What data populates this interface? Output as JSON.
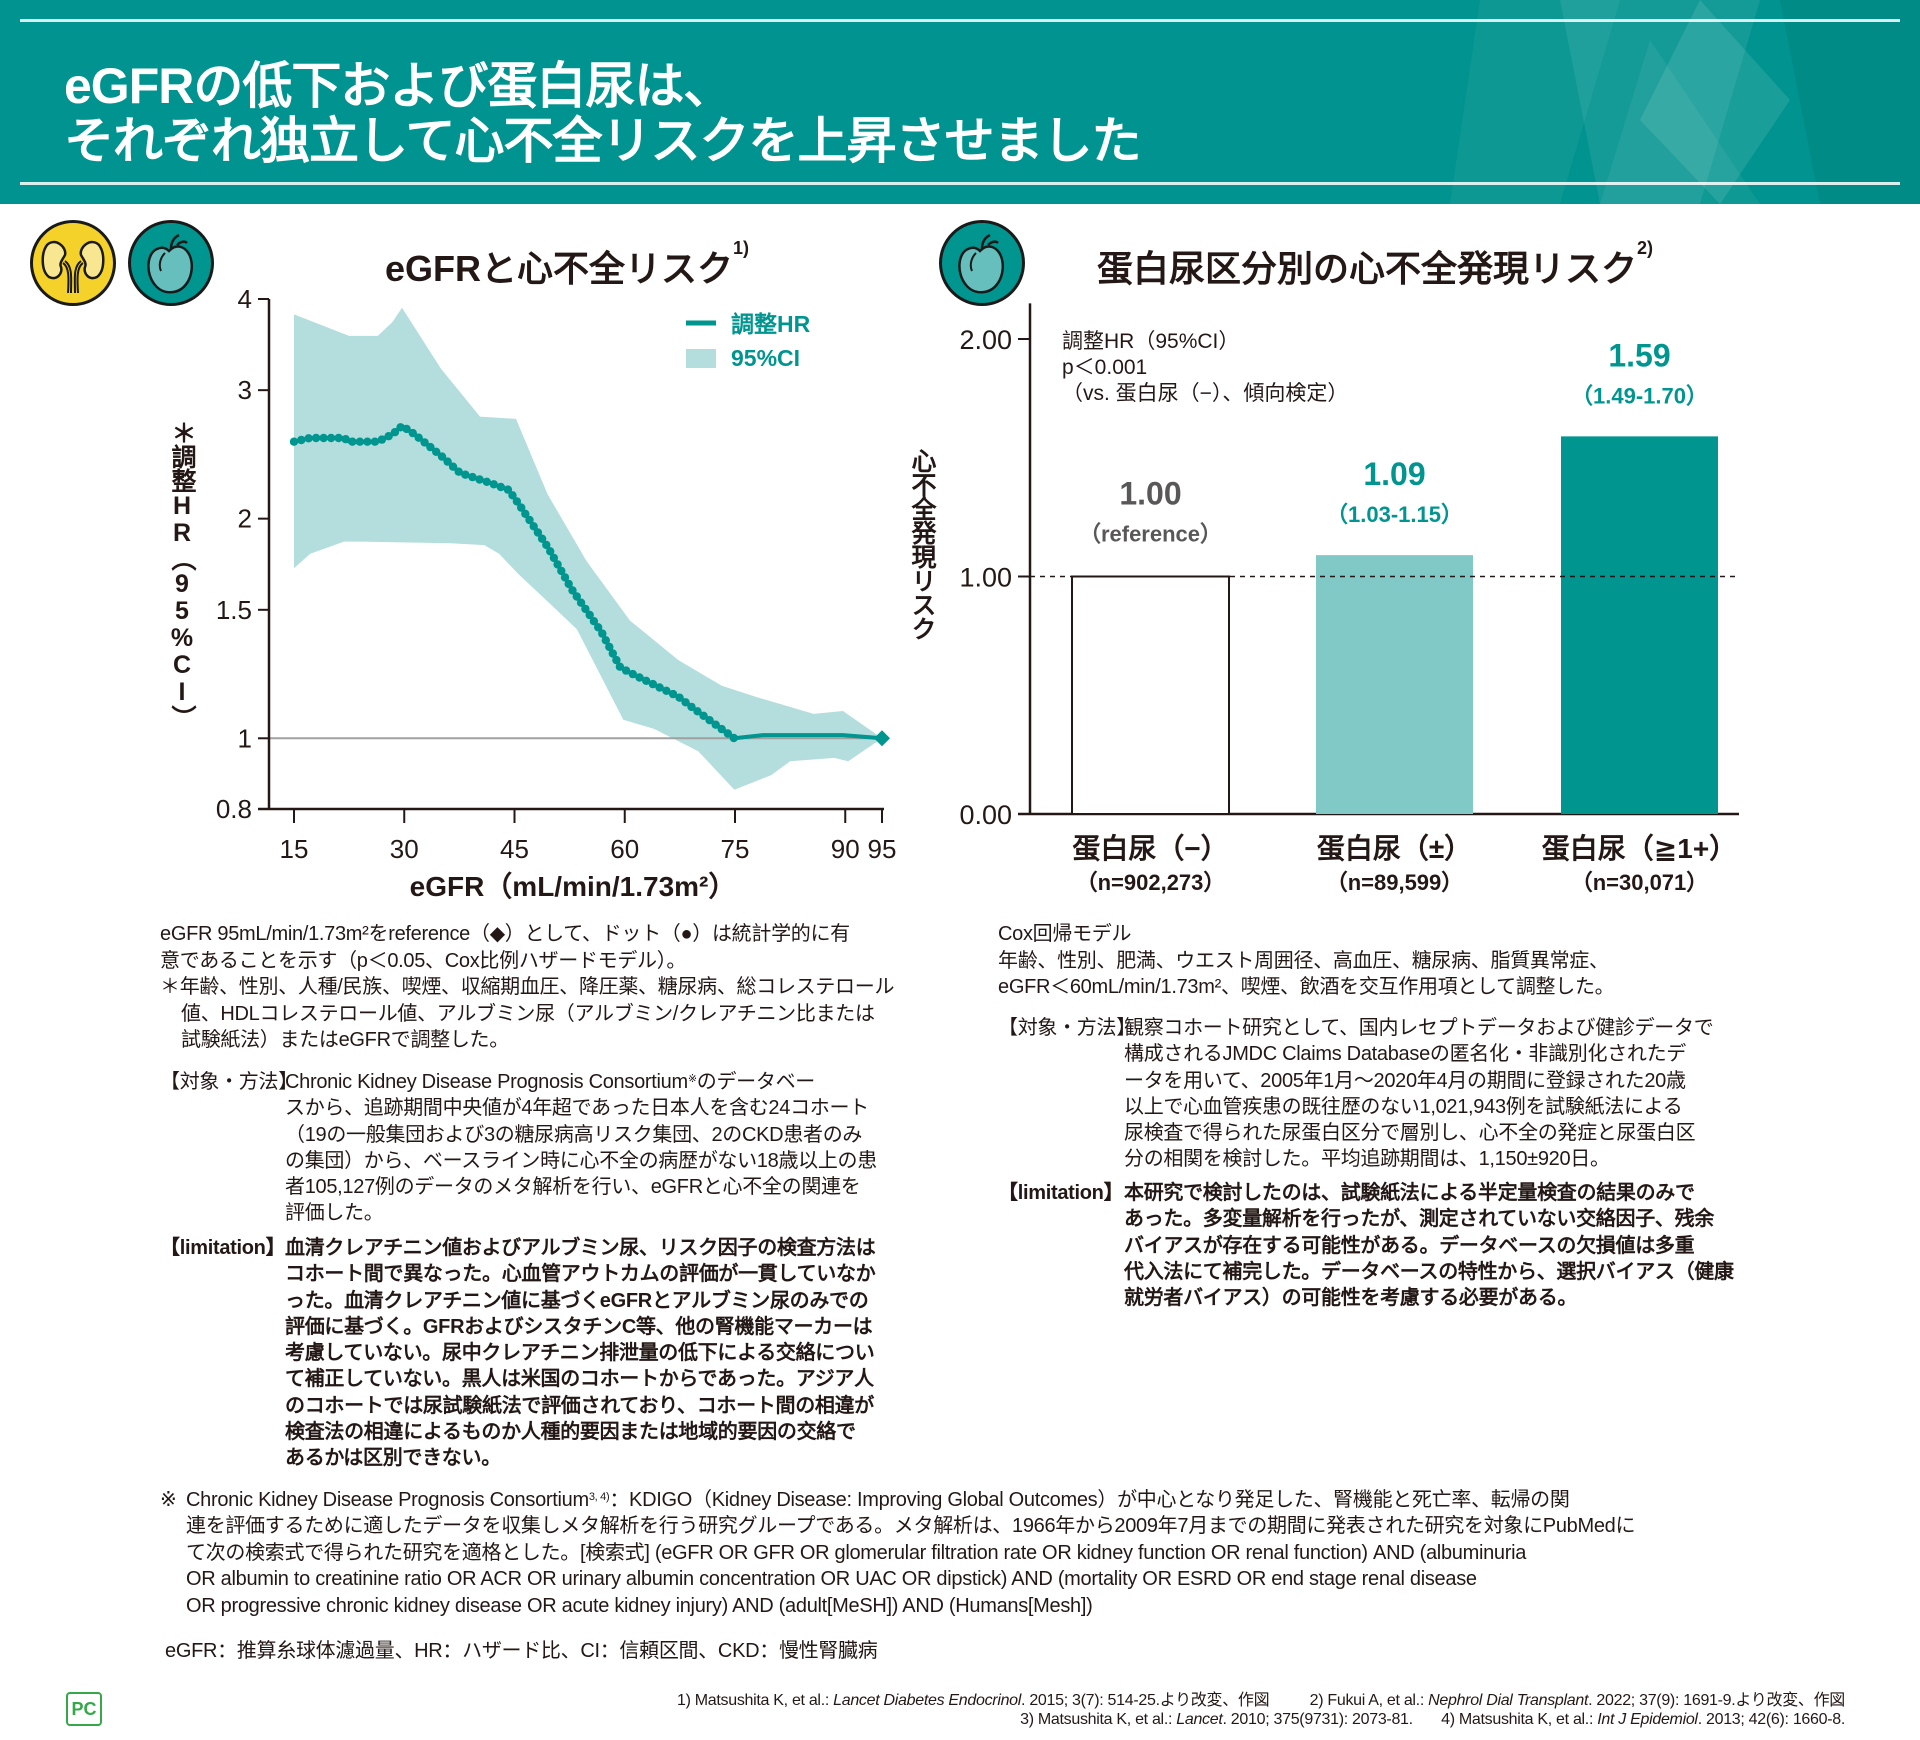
{
  "header": {
    "title_lines": [
      "eGFRの低下および蛋白尿は、",
      "それぞれ独立して心不全リスクを上昇させました"
    ]
  },
  "left_section": {
    "title": "eGFRと心不全リスク",
    "title_ref": "1)",
    "icons": [
      "kidney-icon",
      "heart-icon"
    ]
  },
  "right_section": {
    "title": "蛋白尿区分別の心不全発現リスク",
    "title_ref": "2)",
    "icons": [
      "heart-icon"
    ]
  },
  "chart_data": [
    {
      "type": "line",
      "title": "eGFRと心不全リスク",
      "xlabel": "eGFR（mL/min/1.73m²）",
      "ylabel": "＊調整HR（95%CI）",
      "xlim": [
        15,
        95
      ],
      "ylim": [
        0.8,
        4
      ],
      "yscale": "log",
      "xticks": [
        "15",
        "30",
        "45",
        "60",
        "75",
        "90",
        "95"
      ],
      "yticks": [
        "0.8",
        "1",
        "1.5",
        "2",
        "3",
        "4"
      ],
      "grid": false,
      "reference_line_y": 1,
      "reference_x": 95,
      "significant_range": [
        15,
        75
      ],
      "legend": {
        "position": "top-right",
        "entries": [
          "調整HR",
          "95%CI"
        ]
      },
      "colors": {
        "line": "#00958e",
        "ci": "#b3dedd",
        "reference": "#a0a0a0"
      },
      "series": [
        {
          "name": "調整HR",
          "x": [
            15,
            17.2,
            21.8,
            22.5,
            26.4,
            28.4,
            29.7,
            31.4,
            35,
            37.6,
            41.6,
            44.2,
            45.5,
            49.5,
            52.8,
            56.8,
            59.4,
            61.4,
            67.3,
            69.3,
            74.9,
            78.8,
            89.7,
            95
          ],
          "y": [
            2.55,
            2.58,
            2.58,
            2.55,
            2.55,
            2.61,
            2.68,
            2.61,
            2.44,
            2.31,
            2.24,
            2.19,
            2.1,
            1.83,
            1.6,
            1.4,
            1.25,
            1.22,
            1.14,
            1.1,
            1.0,
            1.01,
            1.01,
            1.0
          ]
        },
        {
          "name": "95%CI",
          "upper": {
            "x": [
              15,
              22.5,
              26.4,
              28.4,
              29.7,
              35,
              40.3,
              45.2,
              49.5,
              54.8,
              60.7,
              67.3,
              73.2,
              77.8,
              85.7,
              89.7,
              95
            ],
            "y": [
              3.81,
              3.56,
              3.56,
              3.72,
              3.89,
              3.21,
              2.76,
              2.74,
              2.16,
              1.75,
              1.45,
              1.28,
              1.18,
              1.14,
              1.08,
              1.09,
              1.0
            ]
          },
          "lower": {
            "x": [
              15,
              17.2,
              21.8,
              24.4,
              36.3,
              40.9,
              42.9,
              45.5,
              50.1,
              53.5,
              59.8,
              64,
              70,
              74.9,
              79.9,
              82.5,
              88.5,
              90.4,
              95
            ],
            "y": [
              1.71,
              1.79,
              1.86,
              1.86,
              1.85,
              1.84,
              1.79,
              1.68,
              1.52,
              1.41,
              1.06,
              1.03,
              0.96,
              0.85,
              0.89,
              0.93,
              0.94,
              0.93,
              1.0
            ]
          }
        }
      ]
    },
    {
      "type": "bar",
      "title": "蛋白尿区分別の心不全発現リスク",
      "ylabel": "心不全発現リスク",
      "ylim": [
        0,
        2.15
      ],
      "yticks": [
        "0.00",
        "1.00",
        "2.00"
      ],
      "ytick_values": [
        0,
        1,
        2
      ],
      "reference_line_y": 1.0,
      "grid": false,
      "annotation": [
        "調整HR（95%CI）",
        "p＜0.001",
        "（vs. 蛋白尿（−）、傾向検定）"
      ],
      "categories": [
        "蛋白尿（−）",
        "蛋白尿（±）",
        "蛋白尿（≧1+）"
      ],
      "n_labels": [
        "（n=902,273）",
        "（n=89,599）",
        "（n=30,071）"
      ],
      "values": [
        1.0,
        1.09,
        1.59
      ],
      "value_labels": [
        "1.00",
        "1.09",
        "1.59"
      ],
      "ci_labels": [
        "（reference）",
        "（1.03-1.15）",
        "（1.49-1.70）"
      ],
      "bar_colors": [
        "#ffffff",
        "#80c9c6",
        "#00958f"
      ],
      "label_colors": [
        "#595757",
        "#00958f",
        "#00958f"
      ]
    }
  ],
  "left_notes": {
    "lines": [
      "eGFR 95mL/min/1.73m²をreference（◆）として、ドット（●）は統計学的に有",
      "意であることを示す（p＜0.05、Cox比例ハザードモデル）。"
    ],
    "asterisk_lines": [
      "＊年齢、性別、人種/民族、喫煙、収縮期血圧、降圧薬、糖尿病、総コレステロール",
      "値、HDLコレステロール値、アルブミン尿（アルブミン/クレアチニン比または",
      "試験紙法）またはeGFRで調整した。"
    ]
  },
  "left_methods": {
    "label": "【対象・方法】",
    "first_line": [
      "Chronic Kidney Disease Prognosis Consortium",
      "※",
      "のデータベー"
    ],
    "lines": [
      "スから、追跡期間中央値が4年超であった日本人を含む24コホート",
      "（19の一般集団および3の糖尿病高リスク集団、2のCKD患者のみ",
      "の集団）から、ベースライン時に心不全の病歴がない18歳以上の患",
      "者105,127例のデータのメタ解析を行い、eGFRと心不全の関連を",
      "評価した。"
    ]
  },
  "left_limitation": {
    "label": "【limitation】",
    "lines": [
      "血清クレアチニン値およびアルブミン尿、リスク因子の検査方法は",
      "コホート間で異なった。心血管アウトカムの評価が一貫していなか",
      "った。血清クレアチニン値に基づくeGFRとアルブミン尿のみでの",
      "評価に基づく。GFRおよびシスタチンC等、他の腎機能マーカーは",
      "考慮していない。尿中クレアチニン排泄量の低下による交絡につい",
      "て補正していない。黒人は米国のコホートからであった。アジア人",
      "のコホートでは尿試験紙法で評価されており、コホート間の相違が",
      "検査法の相違によるものか人種的要因または地域的要因の交絡で",
      "あるかは区別できない。"
    ]
  },
  "right_notes": {
    "lines": [
      "Cox回帰モデル",
      "年齢、性別、肥満、ウエスト周囲径、高血圧、糖尿病、脂質異常症、",
      "eGFR＜60mL/min/1.73m²、喫煙、飲酒を交互作用項として調整した。"
    ]
  },
  "right_methods": {
    "label": "【対象・方法】",
    "lines": [
      "観察コホート研究として、国内レセプトデータおよび健診データで",
      "構成されるJMDC Claims Databaseの匿名化・非識別化されたデ",
      "ータを用いて、2005年1月～2020年4月の期間に登録された20歳",
      "以上で心血管疾患の既往歴のない1,021,943例を試験紙法による",
      "尿検査で得られた尿蛋白区分で層別し、心不全の発症と尿蛋白区",
      "分の相関を検討した。平均追跡期間は、1,150±920日。"
    ]
  },
  "right_limitation": {
    "label": "【limitation】",
    "lines": [
      "本研究で検討したのは、試験紙法による半定量検査の結果のみで",
      "あった。多変量解析を行ったが、測定されていない交絡因子、残余",
      "バイアスが存在する可能性がある。データベースの欠損値は多重",
      "代入法にて補完した。データベースの特性から、選択バイアス（健康",
      "就労者バイアス）の可能性を考慮する必要がある。"
    ]
  },
  "footnote": {
    "mark": "※",
    "first_line": [
      "Chronic Kidney Disease Prognosis Consortium",
      "3, 4)",
      "：KDIGO（Kidney Disease: Improving Global Outcomes）が中心となり発足した、腎機能と死亡率、転帰の関"
    ],
    "lines": [
      "連を評価するために適したデータを収集しメタ解析を行う研究グループである。メタ解析は、1966年から2009年7月までの期間に発表された研究を対象にPubMedに",
      "て次の検索式で得られた研究を適格とした。[検索式] (eGFR OR GFR OR glomerular filtration rate OR kidney function OR renal function) AND (albuminuria",
      "OR albumin to creatinine ratio OR ACR OR urinary albumin concentration OR UAC OR dipstick) AND (mortality OR ESRD OR end stage renal disease",
      "OR progressive chronic kidney disease OR acute kidney injury) AND (adult[MeSH]) AND (Humans[Mesh])"
    ]
  },
  "abbreviations": "eGFR：推算糸球体濾過量、HR：ハザード比、CI：信頼区間、CKD：慢性腎臓病",
  "references": [
    {
      "pre": "1) Matsushita K, et al.: ",
      "journal": "Lancet Diabetes Endocrinol",
      "post": ". 2015; 3(7): 514-25.より改変、作図"
    },
    {
      "pre": "2) Fukui A, et al.: ",
      "journal": "Nephrol Dial Transplant",
      "post": ". 2022; 37(9): 1691-9.より改変、作図"
    },
    {
      "pre": "3) Matsushita K, et al.: ",
      "journal": "Lancet",
      "post": ". 2010; 375(9731): 2073-81."
    },
    {
      "pre": "4) Matsushita K, et al.: ",
      "journal": "Int J Epidemiol",
      "post": ". 2013; 42(6): 1660-8."
    }
  ],
  "logo_text": "PC",
  "colors": {
    "brand_teal": "#00938f",
    "logo_green": "#36a84a"
  }
}
